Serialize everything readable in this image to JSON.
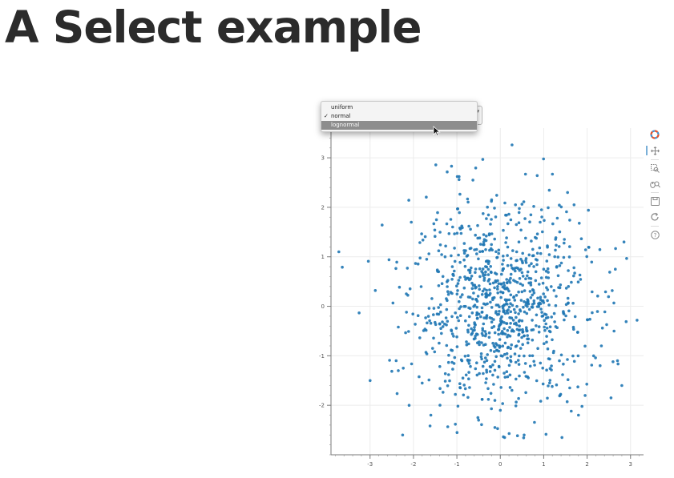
{
  "page": {
    "title": "A Select example"
  },
  "select": {
    "options": [
      {
        "label": "uniform",
        "checked": false,
        "highlighted": false
      },
      {
        "label": "normal",
        "checked": true,
        "highlighted": false
      },
      {
        "label": "lognormal",
        "checked": false,
        "highlighted": true
      }
    ],
    "check_mark": "✓",
    "arrows": "▴▾"
  },
  "toolbar": {
    "tools": [
      {
        "name": "bokeh-logo-icon",
        "interactable": false
      },
      {
        "name": "pan-tool-icon",
        "interactable": true,
        "active": true
      },
      {
        "name": "box-zoom-tool-icon",
        "interactable": true
      },
      {
        "name": "wheel-zoom-tool-icon",
        "interactable": true
      },
      {
        "name": "save-tool-icon",
        "interactable": true
      },
      {
        "name": "reset-tool-icon",
        "interactable": true
      },
      {
        "name": "help-tool-icon",
        "interactable": true
      }
    ]
  },
  "chart_data": {
    "type": "scatter",
    "distribution": "normal",
    "point_count": 1000,
    "x_ticks": [
      "-3",
      "-2",
      "-1",
      "0",
      "1",
      "2",
      "3"
    ],
    "y_ticks": [
      "3",
      "2",
      "1",
      "0",
      "-1",
      "-2"
    ],
    "xlim": [
      -3.9,
      3.3
    ],
    "ylim": [
      -3.0,
      3.6
    ],
    "grid": true,
    "marker_color": "#1f77b4",
    "points": [
      [
        0.27,
        3.26
      ],
      [
        -0.95,
        2.62
      ],
      [
        -0.95,
        2.56
      ],
      [
        -0.63,
        2.55
      ],
      [
        1.2,
        2.67
      ],
      [
        0.58,
        2.67
      ],
      [
        0.85,
        2.64
      ],
      [
        -3.72,
        1.1
      ],
      [
        -3.64,
        0.79
      ],
      [
        -3.04,
        0.91
      ],
      [
        -2.88,
        0.32
      ],
      [
        2.85,
        1.3
      ],
      [
        2.9,
        -0.31
      ],
      [
        3.15,
        -0.28
      ],
      [
        -3.0,
        -1.5
      ],
      [
        -2.35,
        -0.42
      ],
      [
        -2.25,
        -2.6
      ],
      [
        -2.1,
        -2.0
      ],
      [
        -1.6,
        -2.2
      ],
      [
        2.52,
        0.69
      ],
      [
        2.65,
        0.75
      ],
      [
        2.62,
        -0.5
      ],
      [
        2.45,
        -0.37
      ],
      [
        -2.05,
        1.7
      ],
      [
        -1.47,
        1.75
      ],
      [
        1.55,
        2.3
      ],
      [
        1.7,
        2.05
      ],
      [
        0.1,
        -2.65
      ],
      [
        0.55,
        -2.6
      ],
      [
        1.42,
        -2.65
      ],
      [
        2.15,
        -1.0
      ],
      [
        2.3,
        -1.2
      ],
      [
        2.7,
        -1.1
      ],
      [
        2.8,
        -1.6
      ],
      [
        2.55,
        -1.85
      ],
      [
        -2.4,
        -1.1
      ],
      [
        -2.35,
        -1.3
      ],
      [
        0.0,
        -2.1
      ],
      [
        -0.5,
        -2.3
      ],
      [
        1.8,
        -2.2
      ],
      [
        -1.8,
        -1.55
      ],
      [
        1.6,
        -1.65
      ],
      [
        0.95,
        1.95
      ],
      [
        -0.2,
        2.15
      ],
      [
        0.35,
        2.05
      ]
    ]
  }
}
